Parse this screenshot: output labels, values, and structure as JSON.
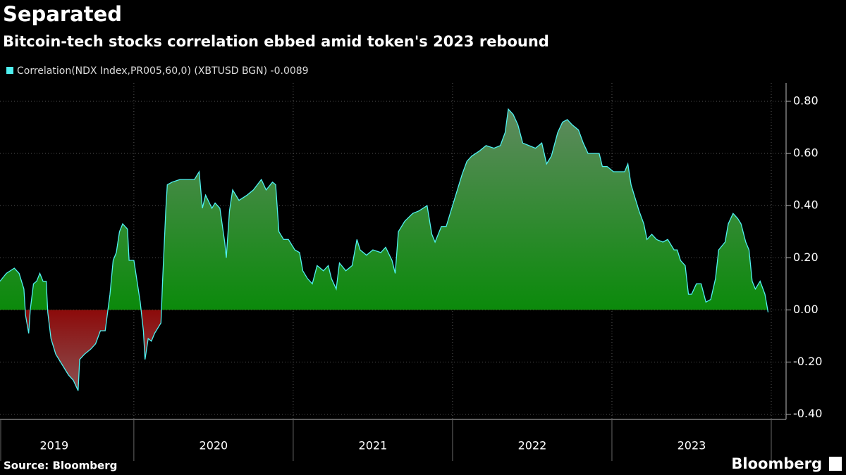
{
  "chart_data": {
    "type": "area",
    "title": "Separated",
    "subtitle": "Bitcoin-tech stocks correlation ebbed amid token's 2023 rebound",
    "source": "Source: Bloomberg",
    "brand": "Bloomberg",
    "grid": true,
    "positive_color": "#0b8a0b",
    "negative_color": "#8c0a0a",
    "xlim": [
      2019.16,
      2024.0
    ],
    "ylim": [
      -0.42,
      0.87
    ],
    "yticks": [
      {
        "value": -0.4,
        "label": "-0.40"
      },
      {
        "value": -0.2,
        "label": "-0.20"
      },
      {
        "value": 0,
        "label": "0.00"
      },
      {
        "value": 0.2,
        "label": "0.20"
      },
      {
        "value": 0.4,
        "label": "0.40"
      },
      {
        "value": 0.6,
        "label": "0.60"
      },
      {
        "value": 0.8,
        "label": "0.80"
      }
    ],
    "xticks": [
      {
        "value": 2019.5,
        "label": "2019"
      },
      {
        "value": 2020.5,
        "label": "2020"
      },
      {
        "value": 2021.5,
        "label": "2021"
      },
      {
        "value": 2022.5,
        "label": "2022"
      },
      {
        "value": 2023.5,
        "label": "2023"
      }
    ],
    "x": [
      2019.16,
      2019.2,
      2019.25,
      2019.28,
      2019.31,
      2019.32,
      2019.34,
      2019.35,
      2019.37,
      2019.39,
      2019.41,
      2019.43,
      2019.45,
      2019.46,
      2019.48,
      2019.51,
      2019.54,
      2019.57,
      2019.59,
      2019.62,
      2019.65,
      2019.66,
      2019.69,
      2019.73,
      2019.76,
      2019.79,
      2019.82,
      2019.85,
      2019.87,
      2019.89,
      2019.91,
      2019.93,
      2019.96,
      2019.97,
      2020.0,
      2020.02,
      2020.04,
      2020.06,
      2020.07,
      2020.09,
      2020.11,
      2020.13,
      2020.15,
      2020.17,
      2020.18,
      2020.2,
      2020.21,
      2020.24,
      2020.29,
      2020.33,
      2020.38,
      2020.41,
      2020.43,
      2020.45,
      2020.49,
      2020.51,
      2020.54,
      2020.57,
      2020.58,
      2020.6,
      2020.62,
      2020.66,
      2020.71,
      2020.75,
      2020.8,
      2020.83,
      2020.87,
      2020.89,
      2020.91,
      2020.94,
      2020.97,
      2021.01,
      2021.04,
      2021.06,
      2021.09,
      2021.12,
      2021.15,
      2021.19,
      2021.22,
      2021.24,
      2021.27,
      2021.29,
      2021.33,
      2021.37,
      2021.4,
      2021.42,
      2021.46,
      2021.5,
      2021.55,
      2021.58,
      2021.62,
      2021.64,
      2021.66,
      2021.7,
      2021.75,
      2021.79,
      2021.84,
      2021.87,
      2021.89,
      2021.93,
      2021.96,
      2021.99,
      2022.03,
      2022.06,
      2022.09,
      2022.12,
      2022.17,
      2022.21,
      2022.26,
      2022.3,
      2022.33,
      2022.35,
      2022.38,
      2022.41,
      2022.44,
      2022.48,
      2022.52,
      2022.56,
      2022.59,
      2022.62,
      2022.66,
      2022.69,
      2022.72,
      2022.75,
      2022.79,
      2022.82,
      2022.85,
      2022.89,
      2022.92,
      2022.94,
      2022.97,
      2023.01,
      2023.04,
      2023.08,
      2023.1,
      2023.12,
      2023.14,
      2023.17,
      2023.2,
      2023.22,
      2023.25,
      2023.28,
      2023.32,
      2023.35,
      2023.39,
      2023.41,
      2023.43,
      2023.46,
      2023.48,
      2023.5,
      2023.53,
      2023.56,
      2023.59,
      2023.62,
      2023.65,
      2023.67,
      2023.71,
      2023.73,
      2023.76,
      2023.79,
      2023.81,
      2023.84,
      2023.86,
      2023.88,
      2023.9,
      2023.93,
      2023.96,
      2023.98
    ],
    "series": [
      {
        "name": "Correlation(NDX Index,PR005,60,0) (XBTUSD BGN) -0.0089",
        "color": "#4ff0f0",
        "values": [
          0.11,
          0.14,
          0.16,
          0.14,
          0.08,
          -0.02,
          -0.09,
          0.0,
          0.1,
          0.11,
          0.14,
          0.11,
          0.11,
          -0.01,
          -0.11,
          -0.17,
          -0.2,
          -0.23,
          -0.25,
          -0.27,
          -0.31,
          -0.19,
          -0.17,
          -0.15,
          -0.13,
          -0.08,
          -0.08,
          0.06,
          0.19,
          0.22,
          0.3,
          0.33,
          0.31,
          0.19,
          0.19,
          0.11,
          0.03,
          -0.08,
          -0.19,
          -0.11,
          -0.12,
          -0.09,
          -0.07,
          -0.05,
          0.11,
          0.38,
          0.48,
          0.49,
          0.5,
          0.5,
          0.5,
          0.53,
          0.39,
          0.44,
          0.39,
          0.41,
          0.39,
          0.26,
          0.2,
          0.38,
          0.46,
          0.42,
          0.44,
          0.46,
          0.5,
          0.46,
          0.49,
          0.48,
          0.3,
          0.27,
          0.27,
          0.23,
          0.22,
          0.15,
          0.12,
          0.1,
          0.17,
          0.15,
          0.17,
          0.12,
          0.08,
          0.18,
          0.15,
          0.17,
          0.27,
          0.23,
          0.21,
          0.23,
          0.22,
          0.24,
          0.19,
          0.14,
          0.3,
          0.34,
          0.37,
          0.38,
          0.4,
          0.29,
          0.26,
          0.32,
          0.32,
          0.38,
          0.46,
          0.52,
          0.57,
          0.59,
          0.61,
          0.63,
          0.62,
          0.63,
          0.68,
          0.77,
          0.75,
          0.71,
          0.64,
          0.63,
          0.62,
          0.64,
          0.56,
          0.59,
          0.68,
          0.72,
          0.73,
          0.71,
          0.69,
          0.64,
          0.6,
          0.6,
          0.6,
          0.55,
          0.55,
          0.53,
          0.53,
          0.53,
          0.56,
          0.48,
          0.44,
          0.38,
          0.33,
          0.27,
          0.29,
          0.27,
          0.26,
          0.27,
          0.23,
          0.23,
          0.19,
          0.17,
          0.06,
          0.06,
          0.1,
          0.1,
          0.03,
          0.04,
          0.12,
          0.23,
          0.26,
          0.33,
          0.37,
          0.35,
          0.33,
          0.26,
          0.23,
          0.11,
          0.08,
          0.11,
          0.06,
          -0.0089
        ]
      }
    ]
  }
}
